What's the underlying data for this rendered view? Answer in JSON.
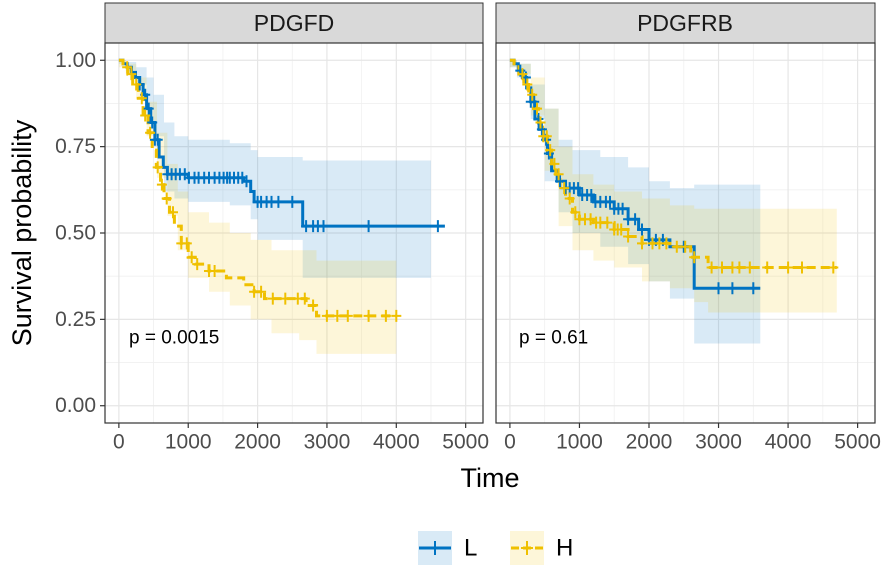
{
  "chart_data": {
    "type": "line",
    "subtype": "kaplan-meier",
    "xlabel": "Time",
    "ylabel": "Survival probability",
    "xlim": [
      -200,
      5250
    ],
    "ylim": [
      -0.05,
      1.05
    ],
    "xticks": [
      0,
      1000,
      2000,
      3000,
      4000,
      5000
    ],
    "yticks": [
      0.0,
      0.25,
      0.5,
      0.75,
      1.0
    ],
    "xtick_labels": [
      "0",
      "1000",
      "2000",
      "3000",
      "4000",
      "5000"
    ],
    "ytick_labels": [
      "0.00",
      "0.25",
      "0.50",
      "0.75",
      "1.00"
    ],
    "grid": true,
    "legend": {
      "position": "bottom",
      "entries": [
        {
          "name": "L",
          "color": "#0073C2"
        },
        {
          "name": "H",
          "color": "#EFC000"
        }
      ]
    },
    "panels": [
      {
        "title": "PDGFD",
        "annotation": "p = 0.0015",
        "series": [
          {
            "name": "L",
            "color": "#0073C2",
            "linestyle": "solid",
            "steps": [
              [
                0,
                1.0
              ],
              [
                60,
                0.99
              ],
              [
                120,
                0.98
              ],
              [
                180,
                0.965
              ],
              [
                240,
                0.95
              ],
              [
                300,
                0.93
              ],
              [
                350,
                0.9
              ],
              [
                400,
                0.86
              ],
              [
                460,
                0.82
              ],
              [
                520,
                0.77
              ],
              [
                580,
                0.72
              ],
              [
                640,
                0.69
              ],
              [
                700,
                0.67
              ],
              [
                1000,
                0.66
              ],
              [
                1800,
                0.65
              ],
              [
                1900,
                0.62
              ],
              [
                1950,
                0.59
              ],
              [
                2650,
                0.52
              ],
              [
                4700,
                0.52
              ]
            ],
            "ci_upper": [
              [
                0,
                1.0
              ],
              [
                100,
                0.995
              ],
              [
                250,
                0.98
              ],
              [
                400,
                0.95
              ],
              [
                500,
                0.9
              ],
              [
                650,
                0.82
              ],
              [
                800,
                0.78
              ],
              [
                1000,
                0.77
              ],
              [
                1600,
                0.76
              ],
              [
                1900,
                0.74
              ],
              [
                2000,
                0.72
              ],
              [
                2650,
                0.71
              ],
              [
                4500,
                0.71
              ]
            ],
            "ci_lower": [
              [
                0,
                0.99
              ],
              [
                100,
                0.97
              ],
              [
                250,
                0.93
              ],
              [
                400,
                0.86
              ],
              [
                500,
                0.78
              ],
              [
                650,
                0.62
              ],
              [
                800,
                0.6
              ],
              [
                1000,
                0.59
              ],
              [
                1600,
                0.58
              ],
              [
                1900,
                0.54
              ],
              [
                2000,
                0.48
              ],
              [
                2650,
                0.37
              ],
              [
                4500,
                0.37
              ]
            ],
            "censor_times": [
              300,
              380,
              430,
              480,
              520,
              560,
              700,
              760,
              820,
              880,
              950,
              1010,
              1090,
              1150,
              1230,
              1300,
              1380,
              1450,
              1510,
              1560,
              1600,
              1660,
              1720,
              1780,
              1840,
              2000,
              2050,
              2130,
              2200,
              2300,
              2500,
              2700,
              2800,
              2870,
              2950,
              3600,
              4600
            ]
          },
          {
            "name": "H",
            "color": "#EFC000",
            "linestyle": "dashed",
            "steps": [
              [
                0,
                1.0
              ],
              [
                60,
                0.98
              ],
              [
                130,
                0.96
              ],
              [
                200,
                0.93
              ],
              [
                280,
                0.89
              ],
              [
                350,
                0.84
              ],
              [
                420,
                0.79
              ],
              [
                480,
                0.74
              ],
              [
                540,
                0.69
              ],
              [
                600,
                0.64
              ],
              [
                650,
                0.6
              ],
              [
                730,
                0.56
              ],
              [
                800,
                0.52
              ],
              [
                900,
                0.47
              ],
              [
                1000,
                0.43
              ],
              [
                1100,
                0.41
              ],
              [
                1300,
                0.39
              ],
              [
                1550,
                0.37
              ],
              [
                1800,
                0.35
              ],
              [
                1950,
                0.33
              ],
              [
                2100,
                0.31
              ],
              [
                2700,
                0.29
              ],
              [
                2850,
                0.26
              ],
              [
                4000,
                0.26
              ]
            ],
            "ci_upper": [
              [
                0,
                1.0
              ],
              [
                100,
                0.99
              ],
              [
                250,
                0.95
              ],
              [
                400,
                0.88
              ],
              [
                550,
                0.79
              ],
              [
                700,
                0.7
              ],
              [
                850,
                0.62
              ],
              [
                1000,
                0.56
              ],
              [
                1300,
                0.53
              ],
              [
                1600,
                0.5
              ],
              [
                1900,
                0.48
              ],
              [
                2200,
                0.45
              ],
              [
                2600,
                0.45
              ],
              [
                2850,
                0.42
              ],
              [
                4000,
                0.42
              ]
            ],
            "ci_lower": [
              [
                0,
                0.98
              ],
              [
                100,
                0.96
              ],
              [
                250,
                0.89
              ],
              [
                400,
                0.78
              ],
              [
                550,
                0.66
              ],
              [
                700,
                0.55
              ],
              [
                850,
                0.45
              ],
              [
                1000,
                0.37
              ],
              [
                1300,
                0.33
              ],
              [
                1600,
                0.29
              ],
              [
                1900,
                0.25
              ],
              [
                2200,
                0.21
              ],
              [
                2600,
                0.19
              ],
              [
                2850,
                0.15
              ],
              [
                4000,
                0.15
              ]
            ],
            "censor_times": [
              120,
              180,
              250,
              330,
              380,
              450,
              560,
              620,
              690,
              780,
              900,
              980,
              1050,
              1130,
              1300,
              1380,
              1950,
              2050,
              2220,
              2400,
              2580,
              2680,
              2800,
              3000,
              3150,
              3300,
              3600,
              3850,
              4000
            ]
          }
        ]
      },
      {
        "title": "PDGFRB",
        "annotation": "p = 0.61",
        "series": [
          {
            "name": "L",
            "color": "#0073C2",
            "linestyle": "solid",
            "steps": [
              [
                0,
                1.0
              ],
              [
                60,
                0.99
              ],
              [
                120,
                0.97
              ],
              [
                180,
                0.95
              ],
              [
                240,
                0.92
              ],
              [
                300,
                0.88
              ],
              [
                360,
                0.83
              ],
              [
                420,
                0.8
              ],
              [
                480,
                0.77
              ],
              [
                540,
                0.73
              ],
              [
                600,
                0.68
              ],
              [
                680,
                0.65
              ],
              [
                800,
                0.63
              ],
              [
                1000,
                0.61
              ],
              [
                1200,
                0.59
              ],
              [
                1500,
                0.57
              ],
              [
                1700,
                0.54
              ],
              [
                1850,
                0.51
              ],
              [
                2000,
                0.48
              ],
              [
                2300,
                0.46
              ],
              [
                2650,
                0.34
              ],
              [
                3600,
                0.34
              ]
            ],
            "ci_upper": [
              [
                0,
                1.0
              ],
              [
                100,
                0.99
              ],
              [
                300,
                0.93
              ],
              [
                500,
                0.86
              ],
              [
                700,
                0.77
              ],
              [
                900,
                0.74
              ],
              [
                1300,
                0.72
              ],
              [
                1700,
                0.69
              ],
              [
                2000,
                0.65
              ],
              [
                2300,
                0.63
              ],
              [
                2650,
                0.64
              ],
              [
                3600,
                0.64
              ]
            ],
            "ci_lower": [
              [
                0,
                0.98
              ],
              [
                100,
                0.95
              ],
              [
                300,
                0.83
              ],
              [
                500,
                0.65
              ],
              [
                700,
                0.56
              ],
              [
                900,
                0.5
              ],
              [
                1300,
                0.46
              ],
              [
                1700,
                0.41
              ],
              [
                2000,
                0.36
              ],
              [
                2300,
                0.31
              ],
              [
                2650,
                0.18
              ],
              [
                3600,
                0.18
              ]
            ],
            "censor_times": [
              150,
              230,
              300,
              350,
              410,
              460,
              520,
              560,
              720,
              800,
              860,
              920,
              980,
              1040,
              1110,
              1170,
              1230,
              1300,
              1380,
              1440,
              1500,
              1560,
              1620,
              1700,
              1800,
              1900,
              2000,
              2100,
              2200,
              2500,
              3000,
              3200,
              3500
            ]
          },
          {
            "name": "H",
            "color": "#EFC000",
            "linestyle": "dashed",
            "steps": [
              [
                0,
                1.0
              ],
              [
                60,
                0.99
              ],
              [
                130,
                0.96
              ],
              [
                200,
                0.93
              ],
              [
                270,
                0.9
              ],
              [
                340,
                0.86
              ],
              [
                410,
                0.82
              ],
              [
                470,
                0.78
              ],
              [
                540,
                0.74
              ],
              [
                600,
                0.7
              ],
              [
                660,
                0.67
              ],
              [
                720,
                0.63
              ],
              [
                800,
                0.6
              ],
              [
                900,
                0.56
              ],
              [
                1000,
                0.54
              ],
              [
                1200,
                0.53
              ],
              [
                1500,
                0.51
              ],
              [
                1700,
                0.49
              ],
              [
                1900,
                0.47
              ],
              [
                2300,
                0.46
              ],
              [
                2600,
                0.43
              ],
              [
                2850,
                0.4
              ],
              [
                4700,
                0.4
              ]
            ],
            "ci_upper": [
              [
                0,
                1.0
              ],
              [
                100,
                0.99
              ],
              [
                300,
                0.95
              ],
              [
                500,
                0.86
              ],
              [
                700,
                0.75
              ],
              [
                900,
                0.67
              ],
              [
                1200,
                0.64
              ],
              [
                1500,
                0.62
              ],
              [
                1900,
                0.6
              ],
              [
                2300,
                0.58
              ],
              [
                2650,
                0.57
              ],
              [
                2850,
                0.57
              ],
              [
                4700,
                0.57
              ]
            ],
            "ci_lower": [
              [
                0,
                0.98
              ],
              [
                100,
                0.96
              ],
              [
                300,
                0.84
              ],
              [
                500,
                0.68
              ],
              [
                700,
                0.52
              ],
              [
                900,
                0.45
              ],
              [
                1200,
                0.42
              ],
              [
                1500,
                0.4
              ],
              [
                1900,
                0.36
              ],
              [
                2300,
                0.34
              ],
              [
                2650,
                0.3
              ],
              [
                2850,
                0.27
              ],
              [
                4700,
                0.27
              ]
            ],
            "censor_times": [
              180,
              250,
              320,
              390,
              440,
              480,
              530,
              580,
              640,
              700,
              780,
              860,
              940,
              1000,
              1080,
              1160,
              1240,
              1300,
              1400,
              1500,
              1550,
              1600,
              1700,
              1900,
              2050,
              2150,
              2250,
              2400,
              2520,
              2650,
              2900,
              3050,
              3200,
              3300,
              3450,
              3700,
              4000,
              4200,
              4650
            ]
          }
        ]
      }
    ]
  }
}
